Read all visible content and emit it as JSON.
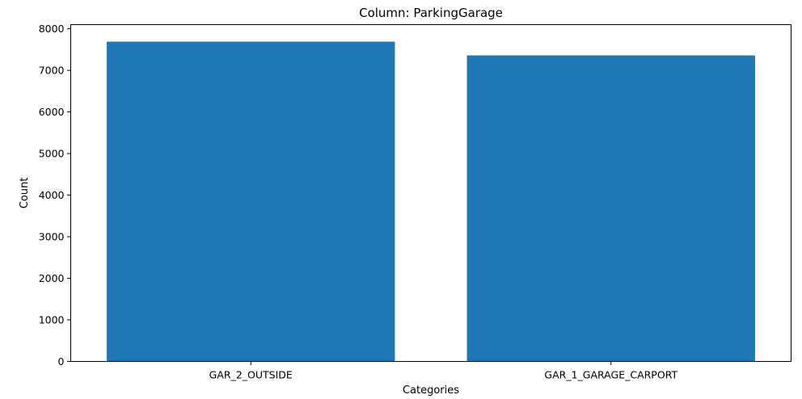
{
  "chart_data": {
    "type": "bar",
    "title": "Column: ParkingGarage",
    "xlabel": "Categories",
    "ylabel": "Count",
    "categories": [
      "GAR_2_OUTSIDE",
      "GAR_1_GARAGE_CARPORT"
    ],
    "values": [
      7690,
      7360
    ],
    "ylim": [
      0,
      8100
    ],
    "yticks": [
      0,
      1000,
      2000,
      3000,
      4000,
      5000,
      6000,
      7000,
      8000
    ],
    "grid": false,
    "legend": "none",
    "colors": {
      "bar": "#1f77b4",
      "axes": "#000000",
      "background": "#ffffff"
    }
  }
}
